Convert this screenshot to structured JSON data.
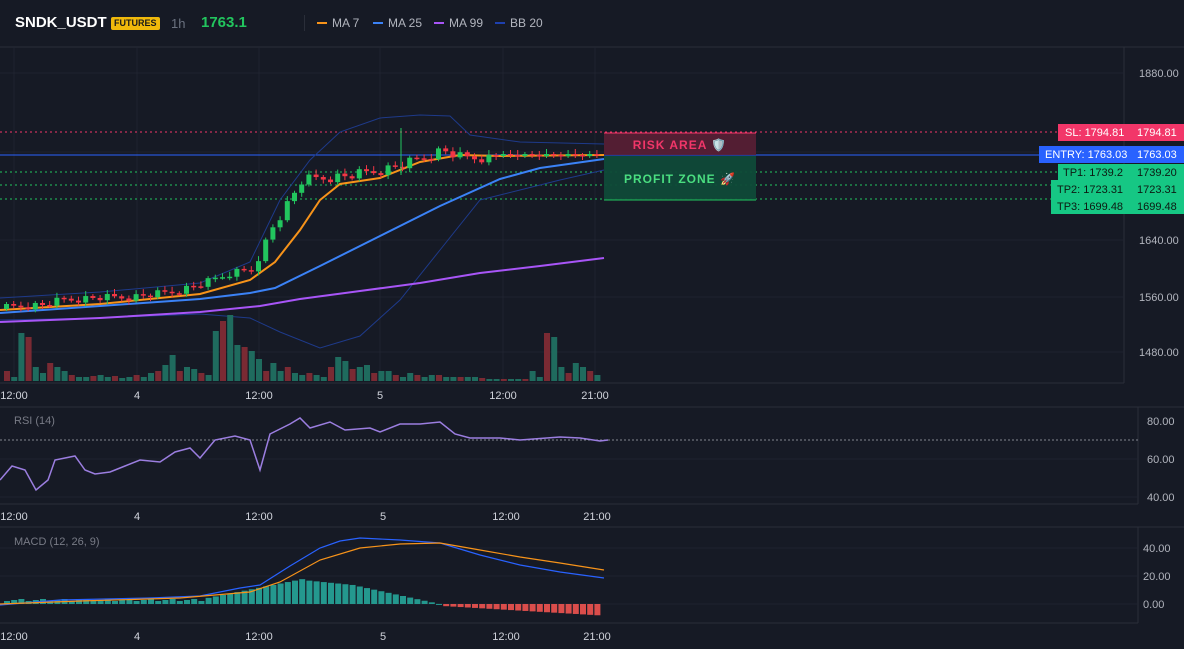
{
  "header": {
    "symbol": "SNDK_USDT",
    "badge": "FUTURES",
    "timeframe": "1h",
    "last_price": "1763.1",
    "legend": [
      {
        "label": "MA 7",
        "color": "#f7931a"
      },
      {
        "label": "MA 25",
        "color": "#3b82f6"
      },
      {
        "label": "MA 99",
        "color": "#a855f7"
      },
      {
        "label": "BB 20",
        "color": "#1e3a8a"
      }
    ]
  },
  "price_axis": {
    "ticks": [
      "1880.00",
      "1640.00",
      "1560.00",
      "1480.00"
    ]
  },
  "time_axis": {
    "ticks": [
      "12:00",
      "4",
      "12:00",
      "5",
      "12:00",
      "21:00"
    ]
  },
  "levels": {
    "sl": {
      "label": "SL: 1794.81",
      "value": "1794.81",
      "color": "#f23669"
    },
    "entry": {
      "label": "ENTRY: 1763.03",
      "value": "1763.03",
      "color": "#2962ff"
    },
    "tp1": {
      "label": "TP1: 1739.2",
      "value": "1739.20",
      "color": "#22c55e"
    },
    "tp2": {
      "label": "TP2: 1723.31",
      "value": "1723.31",
      "color": "#22c55e"
    },
    "tp3": {
      "label": "TP3: 1699.48",
      "value": "1699.48",
      "color": "#22c55e"
    }
  },
  "zones": {
    "risk": {
      "label": "RISK AREA 🛡️"
    },
    "profit": {
      "label": "PROFIT ZONE 🚀"
    }
  },
  "rsi": {
    "title": "RSI (14)",
    "ticks": [
      "80.00",
      "60.00",
      "40.00"
    ]
  },
  "macd": {
    "title": "MACD (12, 26, 9)",
    "ticks": [
      "40.00",
      "20.00",
      "0.00"
    ]
  },
  "colors": {
    "up": "#22c55e",
    "down": "#f23645",
    "vol_up": "#1f6b5e",
    "vol_down": "#7a2a33"
  }
}
